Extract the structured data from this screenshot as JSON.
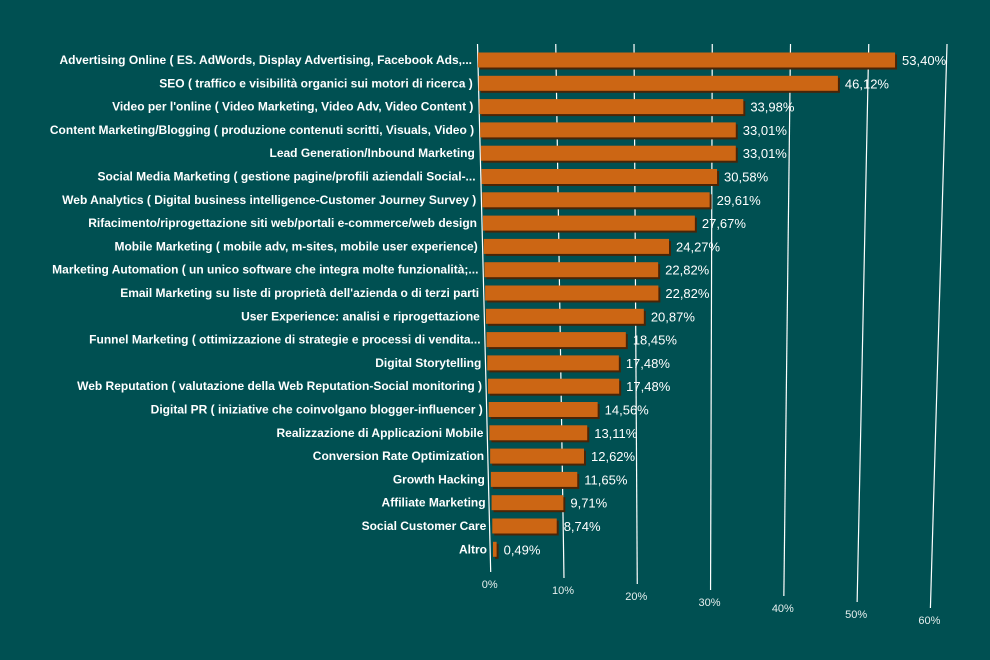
{
  "chart_data": {
    "type": "bar",
    "orientation": "horizontal",
    "title": "",
    "xlabel": "",
    "ylabel": "",
    "xlim": [
      0,
      60
    ],
    "grid": true,
    "legend": "none",
    "bar_color": "#cc6614",
    "background_color": "#005052",
    "categories": [
      "Advertising Online ( ES. AdWords, Display Advertising, Facebook Ads,...",
      "SEO ( traffico e visibilità organici sui motori di ricerca )",
      "Video per l'online ( Video Marketing, Video Adv, Video Content )",
      "Content Marketing/Blogging ( produzione contenuti scritti, Visuals, Video )",
      "Lead Generation/Inbound Marketing",
      "Social Media Marketing ( gestione pagine/profili aziendali Social-...",
      "Web Analytics ( Digital business intelligence-Customer Journey Survey )",
      "Rifacimento/riprogettazione siti web/portali e-commerce/web design",
      "Mobile Marketing ( mobile adv, m-sites, mobile user experience)",
      "Marketing Automation ( un unico software che integra molte funzionalità;...",
      "Email Marketing su liste di proprietà dell'azienda o di terzi parti",
      "User Experience: analisi e riprogettazione",
      "Funnel Marketing ( ottimizzazione di strategie e processi di vendita...",
      "Digital Storytelling",
      "Web Reputation ( valutazione della Web Reputation-Social monitoring )",
      "Digital PR ( iniziative che coinvolgano blogger-influencer )",
      "Realizzazione di Applicazioni Mobile",
      "Conversion Rate Optimization",
      "Growth Hacking",
      "Affiliate Marketing",
      "Social Customer Care",
      "Altro"
    ],
    "values": [
      53.4,
      46.12,
      33.98,
      33.01,
      33.01,
      30.58,
      29.61,
      27.67,
      24.27,
      22.82,
      22.82,
      20.87,
      18.45,
      17.48,
      17.48,
      14.56,
      13.11,
      12.62,
      11.65,
      9.71,
      8.74,
      0.49
    ],
    "value_labels": [
      "53,40%",
      "46,12%",
      "33,98%",
      "33,01%",
      "33,01%",
      "30,58%",
      "29,61%",
      "27,67%",
      "24,27%",
      "22,82%",
      "22,82%",
      "20,87%",
      "18,45%",
      "17,48%",
      "17,48%",
      "14,56%",
      "13,11%",
      "12,62%",
      "11,65%",
      "9,71%",
      "8,74%",
      "0,49%"
    ],
    "ticks": [
      0,
      10,
      20,
      30,
      40,
      50,
      60
    ],
    "tick_labels": [
      "0%",
      "10%",
      "20%",
      "30%",
      "40%",
      "50%",
      "60%"
    ]
  }
}
